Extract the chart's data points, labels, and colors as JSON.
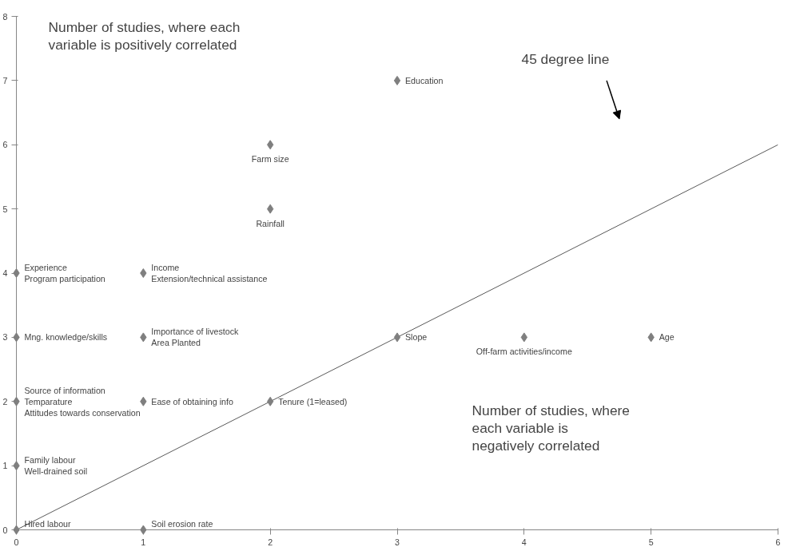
{
  "chart_data": {
    "type": "scatter",
    "grid": false,
    "xlim": [
      0,
      6
    ],
    "ylim": [
      0,
      8
    ],
    "xticks": [
      0,
      1,
      2,
      3,
      4,
      5,
      6
    ],
    "yticks": [
      0,
      1,
      2,
      3,
      4,
      5,
      6,
      7,
      8
    ],
    "series": [
      {
        "marker": "diamond",
        "color": "#7f7f7f",
        "x": [
          0,
          1,
          0,
          0,
          1,
          2,
          0,
          1,
          3,
          4,
          5,
          0,
          1,
          2,
          2,
          3
        ],
        "values": [
          0,
          0,
          1,
          2,
          2,
          2,
          3,
          3,
          3,
          3,
          3,
          4,
          4,
          5,
          6,
          7
        ]
      },
      {
        "type": "line",
        "color": "#595959",
        "x": [
          0,
          6
        ],
        "values": [
          0,
          6
        ]
      }
    ],
    "annotations": [
      "Number of studies, where each variable is positively correlated",
      "Number of studies, where each variable is negatively correlated",
      "45 degree line",
      {
        "text": "Hired labour",
        "x": 0,
        "y": 0
      },
      {
        "text": "Soil erosion rate",
        "x": 1,
        "y": 0
      },
      {
        "text": "Family labour",
        "x": 0,
        "y": 1
      },
      {
        "text": "Well-drained soil",
        "x": 0,
        "y": 1
      },
      {
        "text": "Source of information",
        "x": 0,
        "y": 2
      },
      {
        "text": "Temparature",
        "x": 0,
        "y": 2
      },
      {
        "text": "Attitudes towards conservation",
        "x": 0,
        "y": 2
      },
      {
        "text": "Ease of obtaining info",
        "x": 1,
        "y": 2
      },
      {
        "text": "Tenure (1=leased)",
        "x": 2,
        "y": 2
      },
      {
        "text": "Mng. knowledge/skills",
        "x": 0,
        "y": 3
      },
      {
        "text": "Importance of livestock",
        "x": 1,
        "y": 3
      },
      {
        "text": "Area Planted",
        "x": 1,
        "y": 3
      },
      {
        "text": "Slope",
        "x": 3,
        "y": 3
      },
      {
        "text": "Off-farm activities/income",
        "x": 4,
        "y": 3
      },
      {
        "text": "Age",
        "x": 5,
        "y": 3
      },
      {
        "text": "Experience",
        "x": 0,
        "y": 4
      },
      {
        "text": "Program participation",
        "x": 0,
        "y": 4
      },
      {
        "text": "Income",
        "x": 1,
        "y": 4
      },
      {
        "text": "Extension/technical assistance",
        "x": 1,
        "y": 4
      },
      {
        "text": "Rainfall",
        "x": 2,
        "y": 5
      },
      {
        "text": "Farm size",
        "x": 2,
        "y": 6
      },
      {
        "text": "Education",
        "x": 3,
        "y": 7
      }
    ]
  }
}
